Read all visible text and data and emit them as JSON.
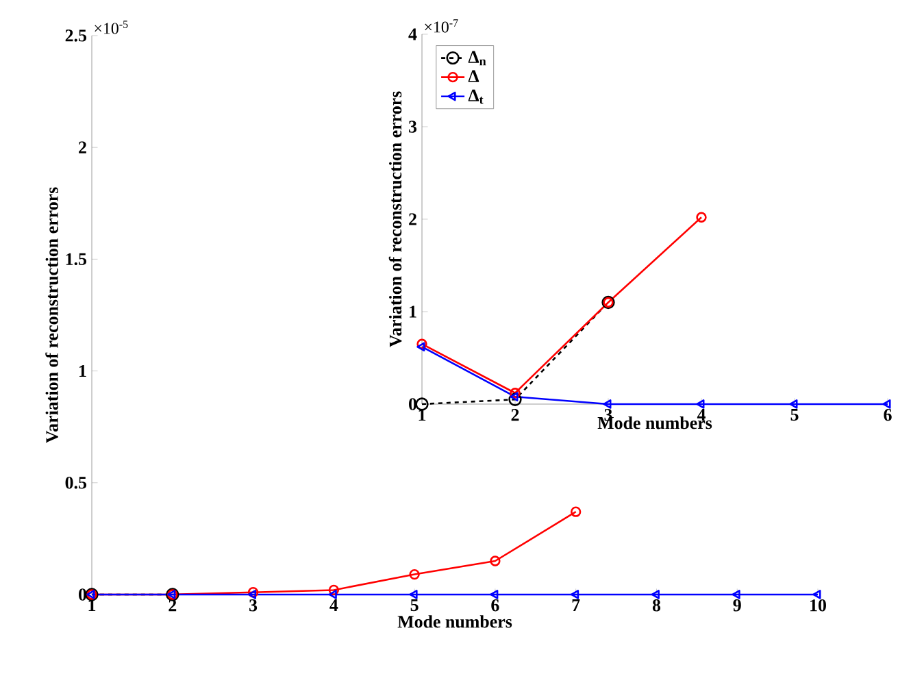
{
  "chart_data": [
    {
      "type": "line",
      "xlabel": "Mode numbers",
      "ylabel": "Variation of reconstruction errors",
      "annotations": [
        "×10$^{-5}$"
      ],
      "x": [
        1,
        2,
        3,
        4,
        5,
        6,
        7,
        8,
        9,
        10
      ],
      "xlim": [
        1,
        10
      ],
      "ylim": [
        0,
        2.5
      ],
      "xticks": [
        1,
        2,
        3,
        4,
        5,
        6,
        7,
        8,
        9,
        10
      ],
      "yticks": [
        0,
        0.5,
        1,
        1.5,
        2,
        2.5
      ],
      "legend": false,
      "series": [
        {
          "color": "#000000",
          "marker": "circle",
          "line_style": "dashed",
          "values": [
            0,
            0,
            null,
            null,
            null,
            null,
            null,
            null,
            null,
            null
          ]
        },
        {
          "color": "#ff0000",
          "marker": "circle",
          "line_style": "solid",
          "values": [
            0,
            0,
            0.01,
            0.02,
            0.09,
            0.15,
            0.37,
            null,
            null,
            null
          ]
        },
        {
          "color": "#0000ff",
          "marker": "triangle",
          "line_style": "solid",
          "values": [
            0,
            0,
            0,
            0,
            0,
            0,
            0,
            0,
            0,
            0
          ]
        }
      ]
    },
    {
      "type": "line",
      "xlabel": "Mode numbers",
      "ylabel": "Variation of reconstruction errors",
      "annotations": [
        "×10$^{-7}$"
      ],
      "x": [
        1,
        2,
        3,
        4,
        5,
        6
      ],
      "xlim": [
        1,
        6
      ],
      "ylim": [
        0,
        4
      ],
      "xticks": [
        1,
        2,
        3,
        4,
        5,
        6
      ],
      "yticks": [
        0,
        1,
        2,
        3,
        4
      ],
      "legend": "top left",
      "series": [
        {
          "name": "Δ$_{n}$",
          "color": "#000000",
          "marker": "circle",
          "line_style": "dashed",
          "values": [
            0,
            0.05,
            1.1,
            null,
            null,
            null
          ]
        },
        {
          "name": "Δ",
          "color": "#ff0000",
          "marker": "circle",
          "line_style": "solid",
          "values": [
            0.65,
            0.12,
            1.1,
            2.02,
            null,
            null
          ]
        },
        {
          "name": "Δ$_{t}$",
          "color": "#0000ff",
          "marker": "triangle",
          "line_style": "solid",
          "values": [
            0.62,
            0.08,
            0,
            0,
            0,
            0
          ]
        }
      ]
    }
  ]
}
